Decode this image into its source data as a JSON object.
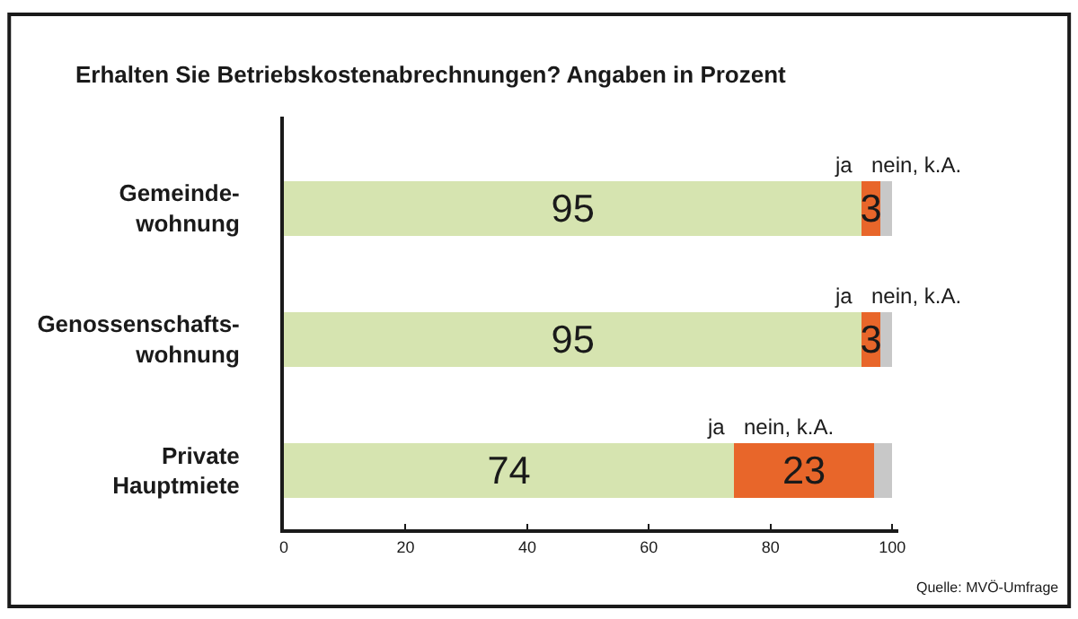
{
  "chart_data": {
    "type": "bar",
    "orientation": "horizontal",
    "stacked": true,
    "title": "Erhalten Sie Betriebskostenabrechnungen? Angaben in Prozent",
    "categories": [
      "Gemeinde-\nwohnung",
      "Genossenschafts-\nwohnung",
      "Private\nHauptmiete"
    ],
    "series": [
      {
        "name": "ja",
        "color": "#d6e4b0",
        "values": [
          95,
          95,
          74
        ],
        "value_labels": [
          "95",
          "95",
          "74"
        ]
      },
      {
        "name": "nein, k.A.",
        "color": "#e8662a",
        "values": [
          3,
          3,
          23
        ],
        "value_labels": [
          "3",
          "3",
          "23"
        ]
      },
      {
        "color": "#c8c8c8",
        "values": [
          2,
          2,
          3
        ]
      }
    ],
    "xlim": [
      0,
      101
    ],
    "xticks": [
      0,
      20,
      40,
      60,
      80,
      100
    ],
    "legend": false,
    "annotations": [
      "Quelle: MVÖ-Umfrage"
    ]
  }
}
